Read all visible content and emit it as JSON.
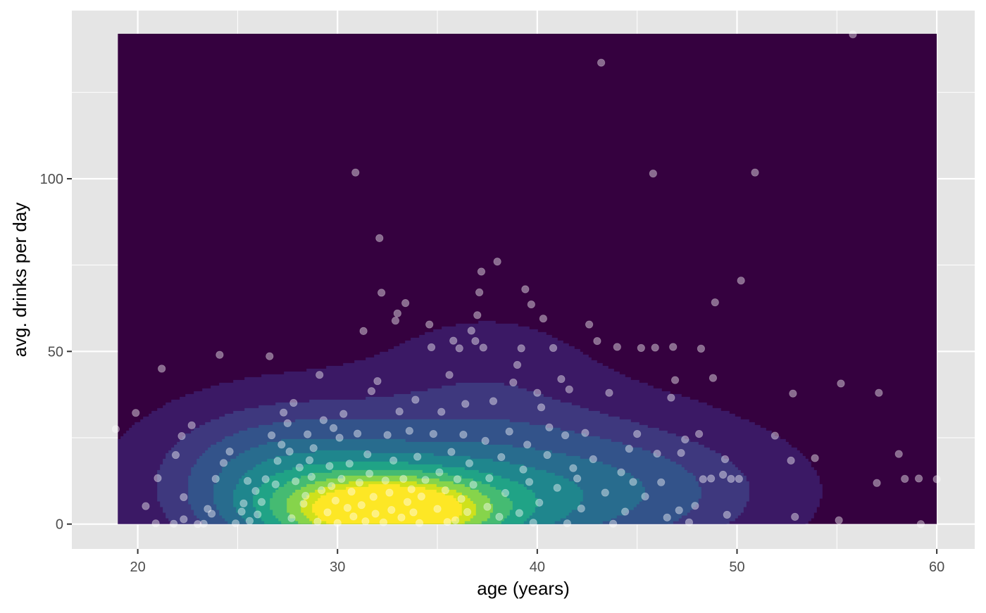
{
  "chart_data": {
    "type": "scatter",
    "title": "",
    "xlabel": "age (years)",
    "ylabel": "avg. drinks per day",
    "xlim": [
      16.7,
      61.9
    ],
    "ylim": [
      -7.2,
      148.7
    ],
    "x_ticks": [
      20,
      30,
      40,
      50,
      60
    ],
    "y_ticks": [
      0,
      50,
      100
    ],
    "x_tick_labels": [
      "20",
      "30",
      "40",
      "50",
      "60"
    ],
    "y_tick_labels": [
      "0",
      "50",
      "100"
    ],
    "grid": true,
    "legend": "none",
    "overlay": "filled 2D density contours (viridis palette) over age 19–60, drinks 0–142",
    "colors": {
      "panel_background": "#e5e5e5",
      "grid": "#ffffff",
      "density_levels": [
        "#35013f",
        "#3b1965",
        "#3e387e",
        "#33538a",
        "#286c8e",
        "#1f868d",
        "#20a386",
        "#45bb72",
        "#86d44b",
        "#cfe11c",
        "#fde725"
      ],
      "points": "#ffffff"
    },
    "density": {
      "x_range": [
        19,
        60
      ],
      "y_range": [
        0,
        142
      ],
      "centers": [
        {
          "x": 32.5,
          "y": 3.5,
          "sx": 3.8,
          "sy": 7.5,
          "w": 1.0
        },
        {
          "x": 36.0,
          "y": 10.0,
          "sx": 7.5,
          "sy": 16.0,
          "w": 0.35
        },
        {
          "x": 27.0,
          "y": 14.0,
          "sx": 3.5,
          "sy": 12.0,
          "w": 0.22
        },
        {
          "x": 44.5,
          "y": 9.0,
          "sx": 4.5,
          "sy": 10.0,
          "w": 0.12
        },
        {
          "x": 37.5,
          "y": 45.0,
          "sx": 3.5,
          "sy": 12.0,
          "w": 0.05
        }
      ]
    },
    "points": [
      [
        18.9,
        27.5
      ],
      [
        19.9,
        32.2
      ],
      [
        20.4,
        5.2
      ],
      [
        20.9,
        0.2
      ],
      [
        21.0,
        13.3
      ],
      [
        21.2,
        45.0
      ],
      [
        21.8,
        0.1
      ],
      [
        21.9,
        20.0
      ],
      [
        22.2,
        25.5
      ],
      [
        22.3,
        1.4
      ],
      [
        22.3,
        7.8
      ],
      [
        22.7,
        28.6
      ],
      [
        23.0,
        0.0
      ],
      [
        23.3,
        0.1
      ],
      [
        23.5,
        4.4
      ],
      [
        23.7,
        3.0
      ],
      [
        23.9,
        13.1
      ],
      [
        24.1,
        49.0
      ],
      [
        24.3,
        17.7
      ],
      [
        24.6,
        21.0
      ],
      [
        24.9,
        0.2
      ],
      [
        25.2,
        3.6
      ],
      [
        25.3,
        6.0
      ],
      [
        25.5,
        12.5
      ],
      [
        25.6,
        0.9
      ],
      [
        25.9,
        9.6
      ],
      [
        26.0,
        2.8
      ],
      [
        26.2,
        6.4
      ],
      [
        26.4,
        13.0
      ],
      [
        26.6,
        48.6
      ],
      [
        26.7,
        25.7
      ],
      [
        26.9,
        11.5
      ],
      [
        27.0,
        18.3
      ],
      [
        27.2,
        23.0
      ],
      [
        27.3,
        32.3
      ],
      [
        27.5,
        29.2
      ],
      [
        27.6,
        21.0
      ],
      [
        27.7,
        1.7
      ],
      [
        27.8,
        35.1
      ],
      [
        27.9,
        12.4
      ],
      [
        28.1,
        16.4
      ],
      [
        28.3,
        5.9
      ],
      [
        28.4,
        8.2
      ],
      [
        28.5,
        26.0
      ],
      [
        28.6,
        18.5
      ],
      [
        28.7,
        13.7
      ],
      [
        28.8,
        22.0
      ],
      [
        29.0,
        0.7
      ],
      [
        29.1,
        43.2
      ],
      [
        29.2,
        9.8
      ],
      [
        29.3,
        30.1
      ],
      [
        29.5,
        3.4
      ],
      [
        29.6,
        16.8
      ],
      [
        29.7,
        11.0
      ],
      [
        29.8,
        27.8
      ],
      [
        29.9,
        6.8
      ],
      [
        30.0,
        0.3
      ],
      [
        30.1,
        25.0
      ],
      [
        30.2,
        13.1
      ],
      [
        30.3,
        31.9
      ],
      [
        30.5,
        4.7
      ],
      [
        30.6,
        17.5
      ],
      [
        30.7,
        9.4
      ],
      [
        30.8,
        2.2
      ],
      [
        30.9,
        101.8
      ],
      [
        31.0,
        26.2
      ],
      [
        31.1,
        12.0
      ],
      [
        31.2,
        5.5
      ],
      [
        31.3,
        55.9
      ],
      [
        31.4,
        0.8
      ],
      [
        31.5,
        20.2
      ],
      [
        31.6,
        14.6
      ],
      [
        31.7,
        38.5
      ],
      [
        31.8,
        7.9
      ],
      [
        31.9,
        3.0
      ],
      [
        32.0,
        41.4
      ],
      [
        32.1,
        82.8
      ],
      [
        32.2,
        67.0
      ],
      [
        32.3,
        0.5
      ],
      [
        32.4,
        12.6
      ],
      [
        32.5,
        25.8
      ],
      [
        32.6,
        9.1
      ],
      [
        32.7,
        4.1
      ],
      [
        32.8,
        18.4
      ],
      [
        32.9,
        58.9
      ],
      [
        33.0,
        61.0
      ],
      [
        33.1,
        32.6
      ],
      [
        33.2,
        1.9
      ],
      [
        33.3,
        13.1
      ],
      [
        33.4,
        64.0
      ],
      [
        33.5,
        6.4
      ],
      [
        33.6,
        27.0
      ],
      [
        33.7,
        10.1
      ],
      [
        33.8,
        3.4
      ],
      [
        33.9,
        36.0
      ],
      [
        34.0,
        19.5
      ],
      [
        34.1,
        0.3
      ],
      [
        34.2,
        8.0
      ],
      [
        34.4,
        12.8
      ],
      [
        34.6,
        57.8
      ],
      [
        34.7,
        51.2
      ],
      [
        34.8,
        26.1
      ],
      [
        35.0,
        4.4
      ],
      [
        35.1,
        15.0
      ],
      [
        35.2,
        32.5
      ],
      [
        35.4,
        9.8
      ],
      [
        35.5,
        0.6
      ],
      [
        35.6,
        43.2
      ],
      [
        35.7,
        20.9
      ],
      [
        35.8,
        53.1
      ],
      [
        35.9,
        1.1
      ],
      [
        36.0,
        13.0
      ],
      [
        36.1,
        50.9
      ],
      [
        36.2,
        7.3
      ],
      [
        36.3,
        25.9
      ],
      [
        36.4,
        34.8
      ],
      [
        36.5,
        3.5
      ],
      [
        36.6,
        17.6
      ],
      [
        36.7,
        56.0
      ],
      [
        36.8,
        11.4
      ],
      [
        36.9,
        53.0
      ],
      [
        37.0,
        60.5
      ],
      [
        37.1,
        67.1
      ],
      [
        37.2,
        73.1
      ],
      [
        37.3,
        51.1
      ],
      [
        37.4,
        24.1
      ],
      [
        37.5,
        5.0
      ],
      [
        37.6,
        13.3
      ],
      [
        37.8,
        35.6
      ],
      [
        38.0,
        76.0
      ],
      [
        38.1,
        2.1
      ],
      [
        38.2,
        19.4
      ],
      [
        38.4,
        9.0
      ],
      [
        38.6,
        26.8
      ],
      [
        38.8,
        41.0
      ],
      [
        39.0,
        46.1
      ],
      [
        39.1,
        3.2
      ],
      [
        39.2,
        50.9
      ],
      [
        39.3,
        15.8
      ],
      [
        39.4,
        68.0
      ],
      [
        39.5,
        23.0
      ],
      [
        39.6,
        12.2
      ],
      [
        39.7,
        63.6
      ],
      [
        39.8,
        0.4
      ],
      [
        40.0,
        38.0
      ],
      [
        40.1,
        6.2
      ],
      [
        40.2,
        33.8
      ],
      [
        40.3,
        59.5
      ],
      [
        40.5,
        20.0
      ],
      [
        40.6,
        28.0
      ],
      [
        40.8,
        51.0
      ],
      [
        41.0,
        10.5
      ],
      [
        41.2,
        42.0
      ],
      [
        41.4,
        25.7
      ],
      [
        41.5,
        0.2
      ],
      [
        41.6,
        39.0
      ],
      [
        41.8,
        16.2
      ],
      [
        42.0,
        13.2
      ],
      [
        42.2,
        4.5
      ],
      [
        42.4,
        26.4
      ],
      [
        42.6,
        57.8
      ],
      [
        42.8,
        18.8
      ],
      [
        43.0,
        53.0
      ],
      [
        43.2,
        133.6
      ],
      [
        43.4,
        9.1
      ],
      [
        43.6,
        38.0
      ],
      [
        43.8,
        0.1
      ],
      [
        44.0,
        51.3
      ],
      [
        44.2,
        15.0
      ],
      [
        44.4,
        3.6
      ],
      [
        44.6,
        21.8
      ],
      [
        44.8,
        12.2
      ],
      [
        45.0,
        26.1
      ],
      [
        45.2,
        51.0
      ],
      [
        45.4,
        8.0
      ],
      [
        45.8,
        101.5
      ],
      [
        45.9,
        51.1
      ],
      [
        46.0,
        20.4
      ],
      [
        46.2,
        12.1
      ],
      [
        46.5,
        1.9
      ],
      [
        46.7,
        36.6
      ],
      [
        46.8,
        51.3
      ],
      [
        46.9,
        41.7
      ],
      [
        47.1,
        4.0
      ],
      [
        47.2,
        20.6
      ],
      [
        47.4,
        24.5
      ],
      [
        47.6,
        0.5
      ],
      [
        47.9,
        5.3
      ],
      [
        48.1,
        26.1
      ],
      [
        48.2,
        50.8
      ],
      [
        48.3,
        13.0
      ],
      [
        48.7,
        13.2
      ],
      [
        48.8,
        42.3
      ],
      [
        48.9,
        64.2
      ],
      [
        49.3,
        14.3
      ],
      [
        49.4,
        18.8
      ],
      [
        49.5,
        2.7
      ],
      [
        49.7,
        13.1
      ],
      [
        50.1,
        13.1
      ],
      [
        50.2,
        70.5
      ],
      [
        50.9,
        101.8
      ],
      [
        51.9,
        25.6
      ],
      [
        52.7,
        18.4
      ],
      [
        52.8,
        37.8
      ],
      [
        52.9,
        2.1
      ],
      [
        53.9,
        19.1
      ],
      [
        55.1,
        1.1
      ],
      [
        55.2,
        40.7
      ],
      [
        55.8,
        141.8
      ],
      [
        57.0,
        11.9
      ],
      [
        57.1,
        38.0
      ],
      [
        58.1,
        20.3
      ],
      [
        58.4,
        13.1
      ],
      [
        59.1,
        13.2
      ],
      [
        59.2,
        0.0
      ],
      [
        60.0,
        13.0
      ]
    ]
  }
}
